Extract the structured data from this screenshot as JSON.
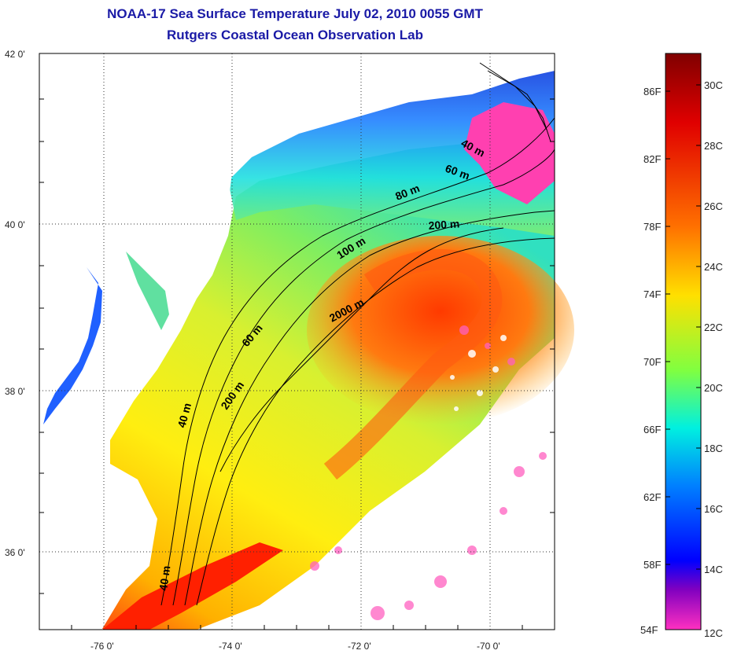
{
  "title": {
    "line1": "NOAA-17 Sea Surface Temperature July 02, 2010 0055 GMT",
    "line2": "Rutgers Coastal Ocean Observation Lab"
  },
  "axes": {
    "x_ticks": [
      "-76 0'",
      "-74 0'",
      "-72 0'",
      "-70 0'"
    ],
    "y_ticks": [
      "42 0'",
      "40 0'",
      "38 0'",
      "36 0'"
    ]
  },
  "isobaths": [
    "40 m",
    "60 m",
    "80 m",
    "200 m",
    "100 m",
    "2000 m",
    "60 m",
    "40 m",
    "200 m",
    "40 m"
  ],
  "colorbar": {
    "fahrenheit": [
      "86F",
      "82F",
      "78F",
      "74F",
      "70F",
      "66F",
      "62F",
      "58F",
      "54F"
    ],
    "celsius": [
      "30C",
      "28C",
      "26C",
      "24C",
      "22C",
      "20C",
      "18C",
      "16C",
      "14C",
      "12C"
    ],
    "colors": [
      "#8b0000",
      "#ff0000",
      "#ff8000",
      "#ffff00",
      "#80ff40",
      "#00ffff",
      "#0080ff",
      "#0000ff",
      "#8000c0",
      "#ff40c0"
    ]
  }
}
